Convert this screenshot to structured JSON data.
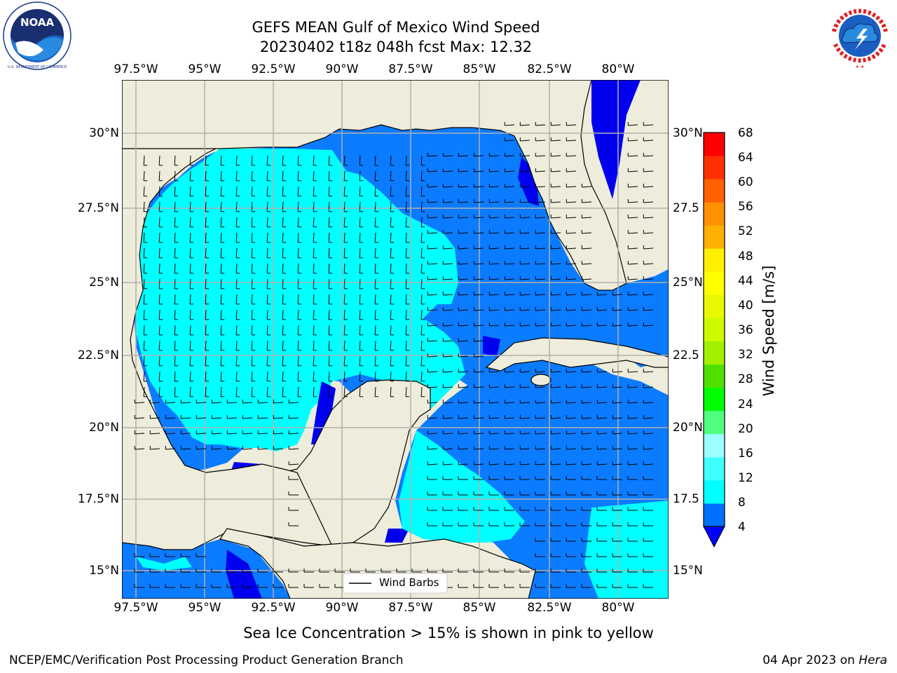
{
  "header": {
    "title_line1": "GEFS MEAN Gulf of Mexico Wind Speed",
    "title_line2": "20230402 t18z 048h fcst   Max: 12.32"
  },
  "logos": {
    "left": {
      "name": "NOAA",
      "ring_text": "NATIONAL OCEANIC AND ATMOSPHERIC ADMINISTRATION",
      "bottom_text": "U.S. DEPARTMENT OF COMMERCE"
    },
    "right": {
      "name": "NATIONAL WEATHER SERVICE"
    }
  },
  "map": {
    "lon_labels": [
      "97.5°W",
      "95°W",
      "92.5°W",
      "90°W",
      "87.5°W",
      "85°W",
      "82.5°W",
      "80°W"
    ],
    "lat_labels_left": [
      "30°N",
      "27.5°N",
      "25°N",
      "22.5°N",
      "20°N",
      "17.5°N",
      "15°N"
    ],
    "lat_labels_right": [
      "30°N",
      "27.5",
      "25°N",
      "22.5",
      "20°N",
      "17.5",
      "15°N"
    ],
    "legend_label": "Wind Barbs",
    "colors": {
      "land": "#eeecda",
      "band_4_8": "#0b7bff",
      "band_8_12": "#00ffff",
      "band_0_4": "#0000ee",
      "grid": "#b0b0b0"
    }
  },
  "colorbar": {
    "label": "Wind Speed [m/s]",
    "ticks": [
      "68",
      "64",
      "60",
      "56",
      "52",
      "48",
      "44",
      "40",
      "36",
      "32",
      "28",
      "24",
      "20",
      "16",
      "12",
      "8",
      "4"
    ],
    "colors_bottom_to_top": [
      "#0070ff",
      "#00ffff",
      "#40ffff",
      "#9cffff",
      "#50ff80",
      "#00ff00",
      "#50e000",
      "#a0f000",
      "#cdfa00",
      "#e8f800",
      "#ffff00",
      "#fff000",
      "#ffb000",
      "#ff9000",
      "#ff6000",
      "#ff3000",
      "#ff0000"
    ],
    "extend_color": "#0000ff"
  },
  "note": "Sea Ice Concentration > 15% is shown in pink to yellow",
  "footer": {
    "left": "NCEP/EMC/Verification Post Processing Product Generation Branch",
    "right_date": "04 Apr 2023 on",
    "right_machine": "Hera"
  }
}
